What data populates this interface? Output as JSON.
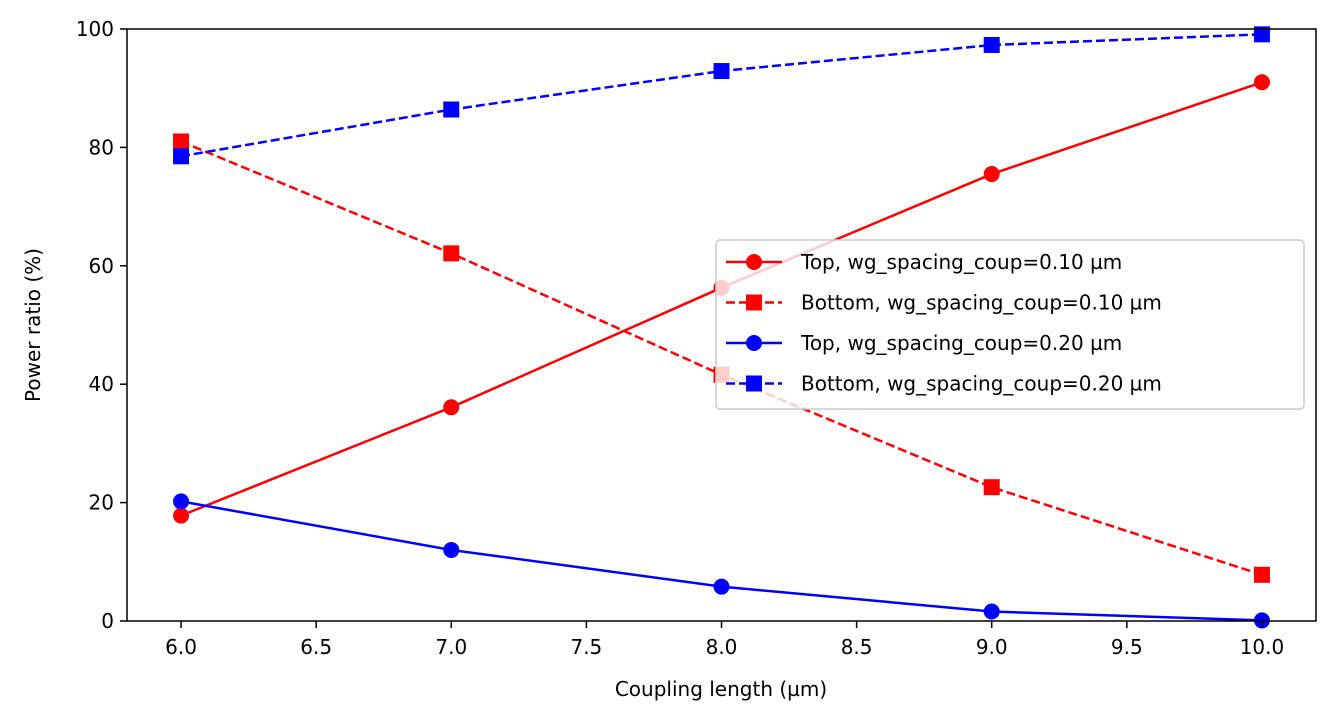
{
  "chart_data": {
    "type": "line",
    "title": "",
    "xlabel": "Coupling length (µm)",
    "ylabel": "Power ratio (%)",
    "xlim": [
      5.8,
      10.2
    ],
    "ylim": [
      0,
      100
    ],
    "xticks": [
      6.0,
      6.5,
      7.0,
      7.5,
      8.0,
      8.5,
      9.0,
      9.5,
      10.0
    ],
    "xtick_labels": [
      "6.0",
      "6.5",
      "7.0",
      "7.5",
      "8.0",
      "8.5",
      "9.0",
      "9.5",
      "10.0"
    ],
    "yticks": [
      0,
      20,
      40,
      60,
      80,
      100
    ],
    "ytick_labels": [
      "0",
      "20",
      "40",
      "60",
      "80",
      "100"
    ],
    "grid": false,
    "legend_position": "center-right",
    "x": [
      6.0,
      7.0,
      8.0,
      9.0,
      10.0
    ],
    "series": [
      {
        "name": "Top, wg_spacing_coup=0.10 µm",
        "color": "#ff0000",
        "linestyle": "solid",
        "marker": "circle",
        "values": [
          17.8,
          36.1,
          56.3,
          75.5,
          91.0
        ]
      },
      {
        "name": "Bottom, wg_spacing_coup=0.10 µm",
        "color": "#ff0000",
        "linestyle": "dashed",
        "marker": "square",
        "values": [
          81.0,
          62.1,
          41.6,
          22.6,
          7.8
        ]
      },
      {
        "name": "Top, wg_spacing_coup=0.20 µm",
        "color": "#0000ff",
        "linestyle": "solid",
        "marker": "circle",
        "values": [
          20.2,
          12.0,
          5.8,
          1.6,
          0.1
        ]
      },
      {
        "name": "Bottom, wg_spacing_coup=0.20 µm",
        "color": "#0000ff",
        "linestyle": "dashed",
        "marker": "square",
        "values": [
          78.5,
          86.4,
          92.9,
          97.3,
          99.1
        ]
      }
    ]
  }
}
